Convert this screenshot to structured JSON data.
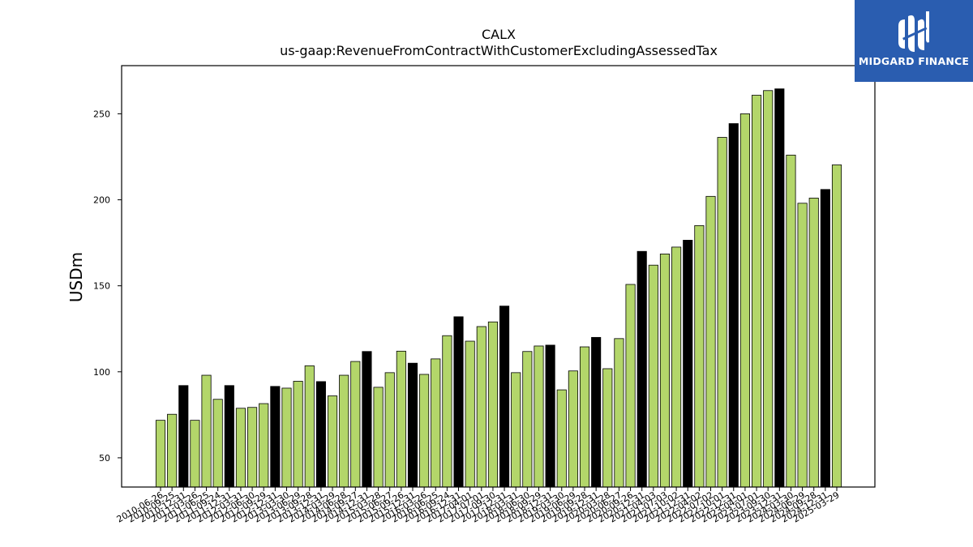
{
  "chart_data": {
    "type": "bar",
    "title": "CALX",
    "subtitle": "us-gaap:RevenueFromContractWithCustomerExcludingAssessedTax",
    "xlabel": "",
    "ylabel": "USDm",
    "ylim": [
      33,
      278
    ],
    "yticks": [
      50,
      100,
      150,
      200,
      250
    ],
    "grid": false,
    "categories": [
      "2010-06-26",
      "2010-09-25",
      "2010-12-31",
      "2011-03-26",
      "2011-06-25",
      "2011-09-24",
      "2011-12-31",
      "2012-03-31",
      "2012-06-30",
      "2012-09-29",
      "2012-12-31",
      "2013-03-30",
      "2013-06-29",
      "2013-09-28",
      "2013-12-31",
      "2014-03-29",
      "2014-06-28",
      "2014-09-27",
      "2014-12-31",
      "2015-03-28",
      "2015-06-27",
      "2015-09-26",
      "2015-12-31",
      "2016-03-26",
      "2016-06-25",
      "2016-09-24",
      "2016-12-31",
      "2017-04-01",
      "2017-07-01",
      "2017-09-30",
      "2017-12-31",
      "2018-03-31",
      "2018-06-30",
      "2018-09-29",
      "2018-12-31",
      "2019-03-30",
      "2019-06-29",
      "2019-09-28",
      "2019-12-31",
      "2020-03-28",
      "2020-06-27",
      "2020-09-26",
      "2020-12-31",
      "2021-04-03",
      "2021-07-03",
      "2021-10-02",
      "2021-12-31",
      "2022-04-02",
      "2022-07-02",
      "2022-10-01",
      "2022-12-31",
      "2023-04-01",
      "2023-07-01",
      "2023-09-30",
      "2023-12-31",
      "2024-03-30",
      "2024-06-29",
      "2024-09-28",
      "2024-12-31",
      "2025-03-29"
    ],
    "values": [
      71.8,
      75.3,
      92.0,
      71.8,
      98.0,
      84.0,
      92.0,
      78.8,
      79.3,
      81.5,
      91.5,
      90.5,
      94.5,
      103.5,
      94.3,
      86.0,
      98.0,
      106.0,
      111.8,
      91.0,
      99.5,
      112.0,
      105.0,
      98.5,
      107.5,
      121.0,
      132.0,
      117.8,
      126.3,
      129.0,
      138.2,
      99.5,
      111.8,
      115.0,
      115.5,
      89.5,
      100.5,
      114.5,
      120.0,
      101.8,
      119.3,
      150.8,
      170.0,
      162.0,
      168.5,
      172.5,
      176.5,
      185.0,
      202.0,
      236.3,
      244.3,
      250.0,
      260.8,
      263.5,
      264.5,
      226.0,
      198.0,
      201.0,
      206.0,
      220.3
    ],
    "highlighted": [
      "2010-12-31",
      "2011-12-31",
      "2012-12-31",
      "2013-12-31",
      "2014-12-31",
      "2015-12-31",
      "2016-12-31",
      "2017-12-31",
      "2018-12-31",
      "2019-12-31",
      "2020-12-31",
      "2021-12-31",
      "2022-12-31",
      "2023-12-31",
      "2024-12-31"
    ],
    "colors": {
      "bar": "#b3d66a",
      "highlight": "#000000",
      "edge": "#000000"
    }
  },
  "logo": {
    "text": "MIDGARD FINANCE",
    "background": "#2a5db0"
  }
}
